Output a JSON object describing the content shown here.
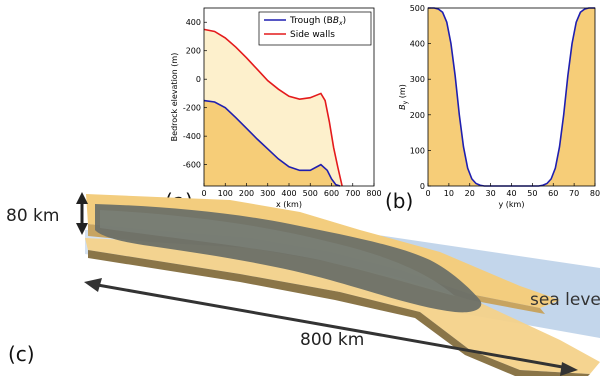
{
  "panels": {
    "a": "(a)",
    "b": "(b)",
    "c": "(c)"
  },
  "colors": {
    "trough": "#1f1fb0",
    "side_walls": "#e41a1c",
    "fill_dark": "#f6cd78",
    "fill_light": "#fdf0cc",
    "sea": "#b7cde6",
    "ice": "#6b7068"
  },
  "scene": {
    "width_label": "80 km",
    "length_label": "800 km",
    "sea_label": "sea leve"
  },
  "chart_data": [
    {
      "type": "line",
      "id": "a",
      "xlabel": "x (km)",
      "ylabel": "Bedrock elevation (m)",
      "xlim": [
        0,
        800
      ],
      "ylim": [
        -750,
        500
      ],
      "xticks": [
        0,
        100,
        200,
        300,
        400,
        500,
        600,
        700,
        800
      ],
      "yticks": [
        -600,
        -400,
        -200,
        0,
        200,
        400
      ],
      "legend_position": "top-right",
      "series": [
        {
          "name": "Trough (B_x)",
          "legend": "Trough (B",
          "legend_sub": "x",
          "legend_close": ")",
          "color": "#1f1fb0",
          "x": [
            0,
            50,
            100,
            150,
            200,
            250,
            300,
            350,
            400,
            450,
            500,
            550,
            580,
            600,
            620,
            640
          ],
          "y": [
            -150,
            -160,
            -200,
            -270,
            -345,
            -420,
            -490,
            -560,
            -615,
            -640,
            -640,
            -600,
            -640,
            -700,
            -740,
            -750
          ]
        },
        {
          "name": "Side walls",
          "legend": "Side walls",
          "color": "#e41a1c",
          "x": [
            0,
            50,
            100,
            150,
            200,
            250,
            300,
            350,
            400,
            450,
            500,
            550,
            570,
            590,
            610,
            630,
            650
          ],
          "y": [
            350,
            335,
            290,
            225,
            150,
            70,
            -10,
            -70,
            -120,
            -140,
            -130,
            -100,
            -150,
            -300,
            -480,
            -620,
            -750
          ]
        }
      ]
    },
    {
      "type": "line",
      "id": "b",
      "xlabel": "y (km)",
      "ylabel": "B_y (m)",
      "ylabel_main": "B",
      "ylabel_sub": "y",
      "ylabel_tail": " (m)",
      "xlim": [
        0,
        80
      ],
      "ylim": [
        0,
        500
      ],
      "xticks": [
        0,
        10,
        20,
        30,
        40,
        50,
        60,
        70,
        80
      ],
      "yticks": [
        0,
        100,
        200,
        300,
        400,
        500
      ],
      "series": [
        {
          "color": "#1f1fb0",
          "x": [
            0,
            3,
            5,
            7,
            9,
            11,
            13,
            15,
            17,
            19,
            21,
            23,
            25,
            27,
            30,
            40,
            50,
            53,
            55,
            57,
            59,
            61,
            63,
            65,
            67,
            69,
            71,
            73,
            75,
            77,
            80
          ],
          "y": [
            500,
            500,
            497,
            488,
            460,
            400,
            310,
            200,
            110,
            50,
            20,
            7,
            2,
            0,
            0,
            0,
            0,
            0,
            2,
            7,
            20,
            50,
            110,
            200,
            310,
            400,
            460,
            488,
            497,
            500,
            500
          ]
        }
      ]
    }
  ]
}
